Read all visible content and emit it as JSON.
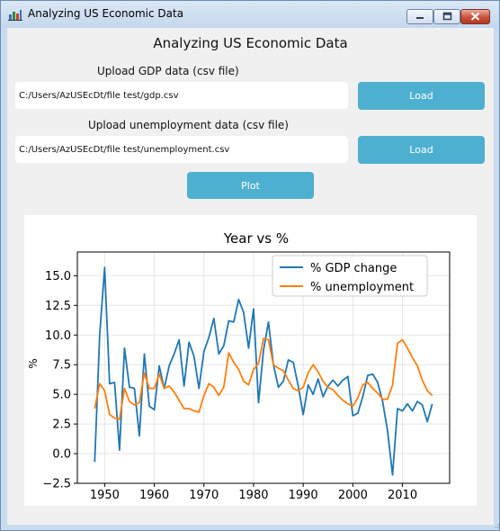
{
  "window": {
    "title": "Analyzing US Economic Data"
  },
  "app": {
    "heading": "Analyzing US Economic Data",
    "gdp": {
      "label": "Upload GDP data (csv file)",
      "path": "C:/Users/AzUSEcDt/file test/gdp.csv",
      "load_label": "Load"
    },
    "unemployment": {
      "label": "Upload unemployment data (csv file)",
      "path": "C:/Users/AzUSEcDt/file test/unemployment.csv",
      "load_label": "Load"
    },
    "plot_label": "Plot"
  },
  "colors": {
    "button": "#4eb0d0",
    "gdp_line": "#1f77b4",
    "unemployment_line": "#ff7f0e"
  },
  "chart_data": {
    "type": "line",
    "title": "Year vs %",
    "xlabel": "",
    "ylabel": "%",
    "xlim": [
      1944.5,
      2019.5
    ],
    "ylim": [
      -2.5,
      17.0
    ],
    "xticks": [
      1950,
      1960,
      1970,
      1980,
      1990,
      2000,
      2010
    ],
    "yticks": [
      -2.5,
      0.0,
      2.5,
      5.0,
      7.5,
      10.0,
      12.5,
      15.0
    ],
    "ytick_labels": [
      "−2.5",
      "0.0",
      "2.5",
      "5.0",
      "7.5",
      "10.0",
      "12.5",
      "15.0"
    ],
    "grid": true,
    "legend": "top-right",
    "x": [
      1948,
      1949,
      1950,
      1951,
      1952,
      1953,
      1954,
      1955,
      1956,
      1957,
      1958,
      1959,
      1960,
      1961,
      1962,
      1963,
      1964,
      1965,
      1966,
      1967,
      1968,
      1969,
      1970,
      1971,
      1972,
      1973,
      1974,
      1975,
      1976,
      1977,
      1978,
      1979,
      1980,
      1981,
      1982,
      1983,
      1984,
      1985,
      1986,
      1987,
      1988,
      1989,
      1990,
      1991,
      1992,
      1993,
      1994,
      1995,
      1996,
      1997,
      1998,
      1999,
      2000,
      2001,
      2002,
      2003,
      2004,
      2005,
      2006,
      2007,
      2008,
      2009,
      2010,
      2011,
      2012,
      2013,
      2014,
      2015,
      2016
    ],
    "series": [
      {
        "name": "% GDP change",
        "color": "#1f77b4",
        "values": [
          -0.7,
          10.0,
          15.7,
          5.9,
          6.0,
          0.3,
          8.9,
          5.6,
          5.5,
          1.5,
          8.4,
          4.0,
          3.7,
          7.4,
          5.5,
          7.4,
          8.4,
          9.6,
          5.7,
          9.4,
          8.2,
          5.5,
          8.6,
          9.8,
          11.4,
          8.4,
          9.1,
          11.2,
          11.1,
          13.0,
          11.9,
          8.9,
          12.2,
          4.3,
          8.7,
          11.1,
          7.5,
          5.6,
          6.1,
          7.9,
          7.7,
          5.7,
          3.3,
          5.8,
          5.0,
          6.3,
          4.8,
          5.7,
          6.2,
          5.7,
          6.2,
          6.5,
          3.2,
          3.4,
          4.8,
          6.6,
          6.7,
          6.0,
          4.4,
          1.9,
          -1.8,
          3.8,
          3.6,
          4.2,
          3.6,
          4.4,
          4.1,
          2.7,
          4.2
        ]
      },
      {
        "name": "% unemployment",
        "color": "#ff7f0e",
        "values": [
          3.8,
          5.9,
          5.3,
          3.3,
          3.0,
          2.9,
          5.5,
          4.4,
          4.1,
          4.3,
          6.8,
          5.5,
          5.5,
          6.7,
          5.5,
          5.7,
          5.2,
          4.5,
          3.8,
          3.8,
          3.6,
          3.5,
          4.9,
          5.9,
          5.6,
          4.9,
          5.6,
          8.5,
          7.7,
          7.1,
          6.1,
          5.8,
          7.1,
          7.6,
          9.7,
          9.6,
          7.5,
          7.2,
          7.0,
          6.2,
          5.5,
          5.3,
          5.6,
          6.8,
          7.5,
          6.9,
          6.1,
          5.6,
          5.4,
          4.9,
          4.5,
          4.2,
          4.0,
          4.7,
          5.8,
          6.0,
          5.5,
          5.1,
          4.6,
          4.6,
          5.8,
          9.3,
          9.6,
          8.9,
          8.1,
          7.4,
          6.2,
          5.3,
          4.9
        ]
      }
    ]
  }
}
